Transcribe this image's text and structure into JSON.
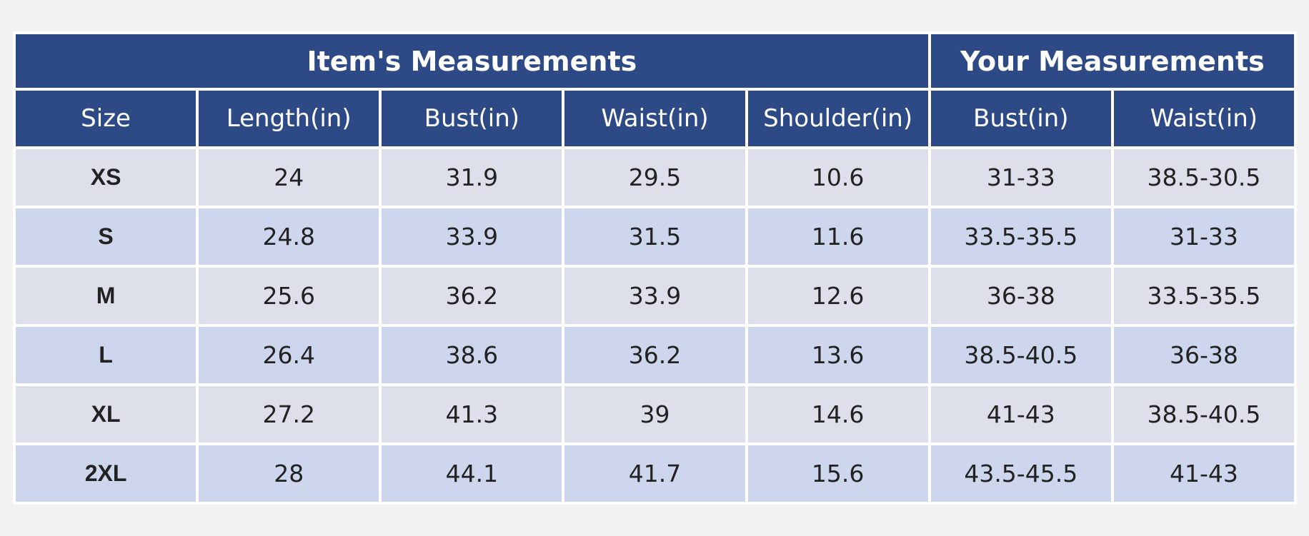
{
  "header": {
    "groups": [
      "Item's Measurements",
      "Your Measurements"
    ],
    "columns": [
      "Size",
      "Length(in)",
      "Bust(in)",
      "Waist(in)",
      "Shoulder(in)",
      "Bust(in)",
      "Waist(in)"
    ]
  },
  "table": {
    "rows": [
      [
        "XS",
        "24",
        "31.9",
        "29.5",
        "10.6",
        "31-33",
        "38.5-30.5"
      ],
      [
        "S",
        "24.8",
        "33.9",
        "31.5",
        "11.6",
        "33.5-35.5",
        "31-33"
      ],
      [
        "M",
        "25.6",
        "36.2",
        "33.9",
        "12.6",
        "36-38",
        "33.5-35.5"
      ],
      [
        "L",
        "26.4",
        "38.6",
        "36.2",
        "13.6",
        "38.5-40.5",
        "36-38"
      ],
      [
        "XL",
        "27.2",
        "41.3",
        "39",
        "14.6",
        "41-43",
        "38.5-40.5"
      ],
      [
        "2XL",
        "28",
        "44.1",
        "41.7",
        "15.6",
        "43.5-45.5",
        "41-43"
      ]
    ]
  }
}
